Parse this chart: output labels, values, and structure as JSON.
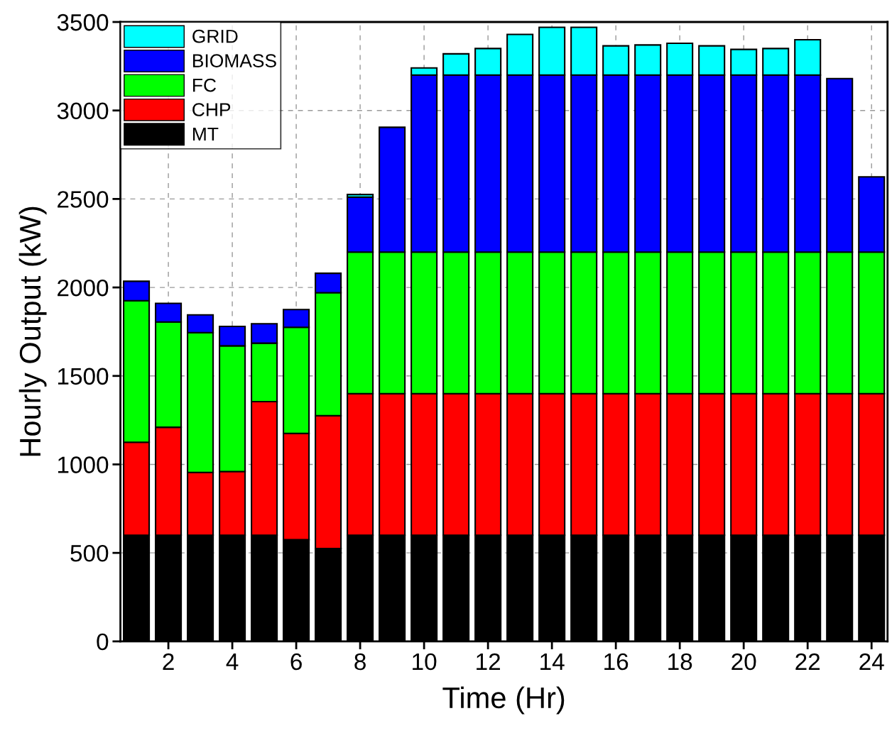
{
  "chart_data": {
    "type": "bar",
    "stacked": true,
    "xlabel": "Time (Hr)",
    "ylabel": "Hourly Output (kW)",
    "x": [
      1,
      2,
      3,
      4,
      5,
      6,
      7,
      8,
      9,
      10,
      11,
      12,
      13,
      14,
      15,
      16,
      17,
      18,
      19,
      20,
      21,
      22,
      23,
      24
    ],
    "xlim": [
      0.5,
      24.5
    ],
    "xticks": [
      2,
      4,
      6,
      8,
      10,
      12,
      14,
      16,
      18,
      20,
      22,
      24
    ],
    "ylim": [
      0,
      3500
    ],
    "yticks": [
      0,
      500,
      1000,
      1500,
      2000,
      2500,
      3000,
      3500
    ],
    "grid": true,
    "legend": "top left",
    "series": [
      {
        "name": "MT",
        "color": "#000000",
        "values": [
          600,
          600,
          600,
          600,
          600,
          575,
          525,
          600,
          600,
          600,
          600,
          600,
          600,
          600,
          600,
          600,
          600,
          600,
          600,
          600,
          600,
          600,
          600,
          600
        ]
      },
      {
        "name": "CHP",
        "color": "#ff0000",
        "values": [
          525,
          610,
          355,
          360,
          755,
          600,
          750,
          800,
          800,
          800,
          800,
          800,
          800,
          800,
          800,
          800,
          800,
          800,
          800,
          800,
          800,
          800,
          800,
          800
        ]
      },
      {
        "name": "FC",
        "color": "#00ff00",
        "values": [
          800,
          595,
          790,
          710,
          330,
          600,
          695,
          800,
          800,
          800,
          800,
          800,
          800,
          800,
          800,
          800,
          800,
          800,
          800,
          800,
          800,
          800,
          800,
          800
        ]
      },
      {
        "name": "BIOMASS",
        "color": "#0000ff",
        "values": [
          110,
          105,
          100,
          110,
          110,
          100,
          110,
          310,
          705,
          1000,
          1000,
          1000,
          1000,
          1000,
          1000,
          1000,
          1000,
          1000,
          1000,
          1000,
          1000,
          1000,
          980,
          425
        ]
      },
      {
        "name": "GRID",
        "color": "#00ffff",
        "values": [
          null,
          null,
          null,
          null,
          null,
          null,
          null,
          15,
          null,
          40,
          120,
          150,
          230,
          270,
          270,
          165,
          170,
          180,
          165,
          145,
          150,
          200,
          null,
          null
        ]
      }
    ]
  }
}
